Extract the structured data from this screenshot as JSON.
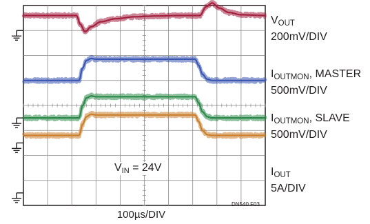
{
  "chart_data": {
    "type": "line",
    "title": "",
    "xlabel": "100µs/DIV",
    "figure_id": "DN540 F03",
    "annotation": {
      "sub": "IN",
      "prefix": "V",
      "suffix": " = 24V"
    },
    "grid": true,
    "divisions": {
      "x": 10,
      "y": 8
    },
    "xlim": [
      0,
      10
    ],
    "series": [
      {
        "name": "VOUT",
        "name_main": "V",
        "name_sub": "OUT",
        "name_suffix": "",
        "scale": "200mV/DIV",
        "color": "#a3203f",
        "ground_div": 1.0,
        "x": [
          0,
          2.2,
          2.35,
          2.55,
          2.8,
          3.2,
          3.8,
          4.6,
          5.5,
          6.4,
          7.3,
          7.55,
          7.8,
          8.1,
          8.5,
          9.0,
          10
        ],
        "y": [
          0.6,
          0.6,
          0.25,
          -0.05,
          0.15,
          0.35,
          0.47,
          0.55,
          0.58,
          0.6,
          0.6,
          0.95,
          1.1,
          0.9,
          0.72,
          0.63,
          0.6
        ]
      },
      {
        "name": "IOUTMON, MASTER",
        "name_main": "I",
        "name_sub": "OUTMON",
        "name_suffix": ", MASTER",
        "scale": "500mV/DIV",
        "color": "#3a56b0",
        "ground_div": 3.0,
        "x": [
          0,
          2.3,
          2.45,
          2.6,
          2.8,
          3.0,
          7.1,
          7.25,
          7.4,
          7.6,
          7.8,
          10
        ],
        "y": [
          0.0,
          0.0,
          0.5,
          0.8,
          0.88,
          0.85,
          0.85,
          0.6,
          0.25,
          0.05,
          0.0,
          0.0
        ]
      },
      {
        "name": "IOUTMON, SLAVE",
        "name_main": "I",
        "name_sub": "OUTMON",
        "name_suffix": ", SLAVE",
        "scale": "500mV/DIV",
        "color": "#2e8a4a",
        "ground_div": 4.5,
        "x": [
          0,
          2.3,
          2.45,
          2.6,
          2.8,
          3.0,
          7.1,
          7.25,
          7.4,
          7.6,
          7.8,
          10
        ],
        "y": [
          0.0,
          0.0,
          0.5,
          0.8,
          0.88,
          0.85,
          0.85,
          0.6,
          0.25,
          0.05,
          0.0,
          0.0
        ]
      },
      {
        "name": "IOUT",
        "name_main": "I",
        "name_sub": "OUT",
        "name_suffix": "",
        "scale": "5A/DIV",
        "color": "#c9802e",
        "ground_div": 5.5,
        "x": [
          0,
          2.3,
          2.45,
          2.6,
          2.8,
          3.0,
          7.1,
          7.25,
          7.4,
          7.6,
          7.8,
          10
        ],
        "y": [
          0.3,
          0.3,
          0.75,
          1.05,
          1.15,
          1.12,
          1.12,
          0.85,
          0.5,
          0.33,
          0.3,
          0.3
        ]
      }
    ],
    "extra_ground_divs": [
      7.5
    ]
  }
}
